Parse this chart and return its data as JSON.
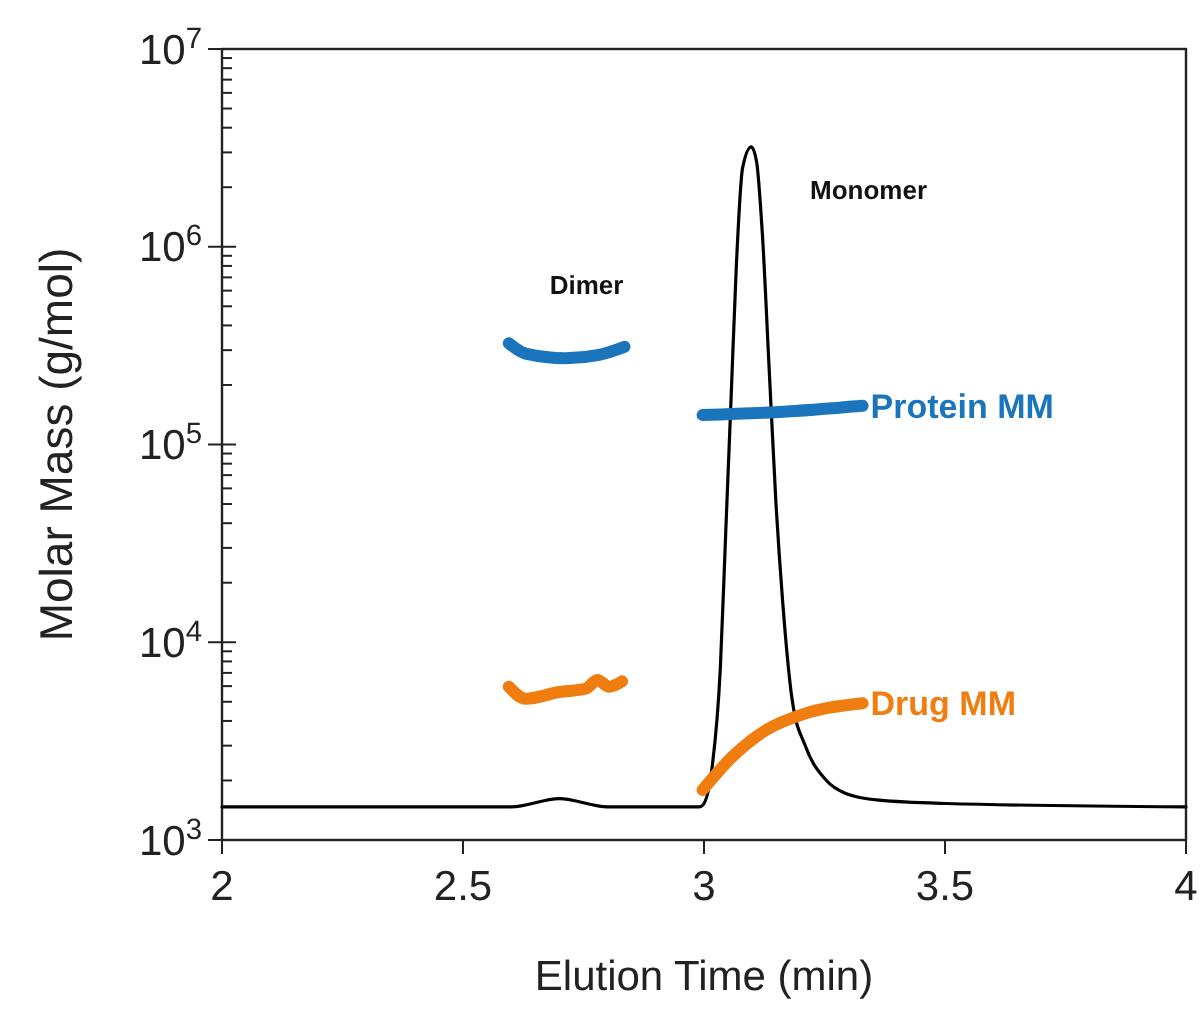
{
  "chart_data": {
    "type": "line",
    "xlabel": "Elution Time (min)",
    "ylabel": "Molar Mass (g/mol)",
    "log": "y",
    "xlim": [
      2,
      4
    ],
    "xticks": [
      2,
      2.5,
      3,
      3.5,
      4
    ],
    "ylim": [
      1000,
      10000000
    ],
    "yticks": [
      {
        "value": 1000,
        "label": "10$^{3}$"
      },
      {
        "value": 10000,
        "label": "10$^{4}$"
      },
      {
        "value": 100000,
        "label": "10$^{5}$"
      },
      {
        "value": 1000000,
        "label": "10$^{6}$"
      },
      {
        "value": 10000000,
        "label": "10$^{7}$"
      }
    ],
    "grid": false,
    "marker": "none",
    "line_style": "solid",
    "annotations": [
      "Dimer",
      "Monomer"
    ],
    "series": [
      {
        "color": "#000000",
        "x": [
          2,
          2.6,
          2.7,
          2.8,
          2.99,
          2.997,
          3.017,
          3.034,
          3.045,
          3.056,
          3.067,
          3.08,
          3.098,
          3.109,
          3.121,
          3.135,
          3.149,
          3.163,
          3.183,
          3.211,
          3.253,
          3.294,
          3.363,
          3.502,
          4
        ],
        "values": [
          1470,
          1470,
          1620,
          1470,
          1470,
          1496,
          2350,
          7500,
          35500,
          167000,
          791000,
          2500000,
          3200000,
          2700000,
          1170000,
          247000,
          52000,
          16300,
          5100,
          2960,
          2010,
          1720,
          1590,
          1530,
          1470
        ]
      },
      {
        "color": "#1b75bc",
        "x": [
          2.595,
          2.63,
          2.713,
          2.782,
          2.835
        ],
        "values": [
          325000,
          288000,
          273000,
          284000,
          312000
        ]
      },
      {
        "name": "Protein MM",
        "color": "#1b75bc",
        "x": [
          2.997,
          3.156,
          3.329
        ],
        "values": [
          141000,
          146000,
          157000
        ]
      },
      {
        "color": "#ef7d10",
        "x": [
          2.595,
          2.63,
          2.699,
          2.754,
          2.779,
          2.803,
          2.83
        ],
        "values": [
          5960,
          5180,
          5600,
          5820,
          6440,
          5960,
          6340
        ]
      },
      {
        "name": "Drug MM",
        "color": "#ef7d10",
        "x": [
          2.997,
          3.059,
          3.128,
          3.211,
          3.329
        ],
        "values": [
          1790,
          2640,
          3590,
          4370,
          4910
        ]
      }
    ]
  }
}
